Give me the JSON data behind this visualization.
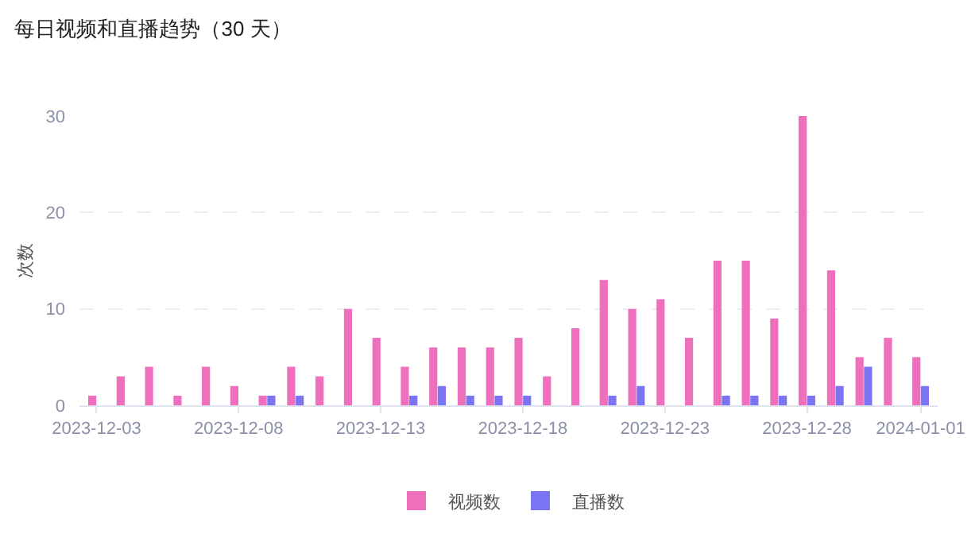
{
  "chart_data": {
    "type": "bar",
    "title": "每日视频和直播趋势（30 天）",
    "ylabel": "次数",
    "categories": [
      "2023-12-03",
      null,
      null,
      null,
      null,
      "2023-12-08",
      null,
      null,
      null,
      null,
      "2023-12-13",
      null,
      null,
      null,
      null,
      "2023-12-18",
      null,
      null,
      null,
      null,
      "2023-12-23",
      null,
      null,
      null,
      null,
      "2023-12-28",
      null,
      null,
      null,
      "2024-01-01"
    ],
    "series": [
      {
        "name": "视频数",
        "color": "#ee6fbb",
        "values": [
          1,
          3,
          4,
          1,
          4,
          2,
          1,
          4,
          3,
          10,
          7,
          4,
          6,
          6,
          6,
          7,
          3,
          8,
          13,
          10,
          11,
          7,
          15,
          15,
          9,
          30,
          14,
          5,
          7,
          5
        ]
      },
      {
        "name": "直播数",
        "color": "#7b74f2",
        "values": [
          0,
          0,
          0,
          0,
          0,
          0,
          1,
          1,
          0,
          0,
          0,
          1,
          2,
          1,
          1,
          1,
          0,
          0,
          1,
          2,
          0,
          0,
          1,
          1,
          1,
          1,
          2,
          4,
          0,
          2
        ]
      }
    ],
    "ylim": [
      0,
      30
    ],
    "yticks": [
      0,
      10,
      20,
      30
    ],
    "grid": "y",
    "legend": "bottom"
  }
}
